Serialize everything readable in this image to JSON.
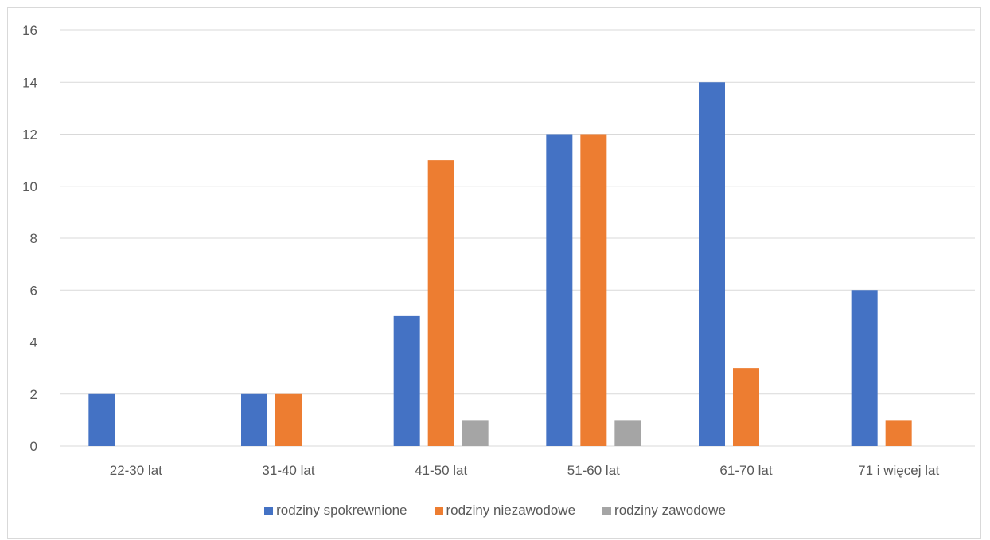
{
  "chart_data": {
    "type": "bar",
    "title": "",
    "xlabel": "",
    "ylabel": "",
    "categories": [
      "22-30 lat",
      "31-40 lat",
      "41-50 lat",
      "51-60 lat",
      "61-70 lat",
      "71 i więcej lat"
    ],
    "series": [
      {
        "name": "rodziny spokrewnione",
        "color": "#4472c4",
        "values": [
          2,
          2,
          5,
          12,
          14,
          6
        ]
      },
      {
        "name": "rodziny niezawodowe",
        "color": "#ed7d31",
        "values": [
          0,
          2,
          11,
          12,
          3,
          1
        ]
      },
      {
        "name": "rodziny zawodowe",
        "color": "#a5a5a5",
        "values": [
          0,
          0,
          1,
          1,
          0,
          0
        ]
      }
    ],
    "ylim": [
      0,
      16
    ],
    "yticks": [
      0,
      2,
      4,
      6,
      8,
      10,
      12,
      14,
      16
    ],
    "grid": true,
    "legend_position": "bottom"
  }
}
